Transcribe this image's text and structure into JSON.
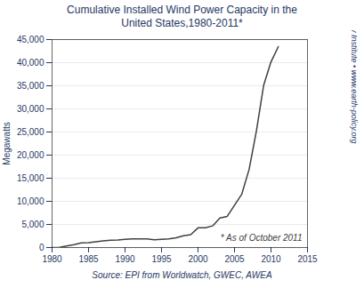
{
  "chart_data": {
    "type": "line",
    "title": "Cumulative Installed Wind Power Capacity in the\nUnited States,1980-2011*",
    "ylabel": "Megawatts",
    "annotation": "* As of October 2011",
    "credit": "Earth Policy Institute • www.earth-policy.org",
    "caption": "Source: EPI from Worldwatch, GWEC, AWEA",
    "x": [
      1980,
      1981,
      1982,
      1983,
      1984,
      1985,
      1986,
      1987,
      1988,
      1989,
      1990,
      1991,
      1992,
      1993,
      1994,
      1995,
      1996,
      1997,
      1998,
      1999,
      2000,
      2001,
      2002,
      2003,
      2004,
      2005,
      2006,
      2007,
      2008,
      2009,
      2010,
      2011
    ],
    "values": [
      10,
      50,
      340,
      625,
      1020,
      1039,
      1262,
      1423,
      1594,
      1655,
      1770,
      1854,
      1873,
      1875,
      1703,
      1770,
      1870,
      2108,
      2554,
      2796,
      4258,
      4275,
      4685,
      6374,
      6740,
      9149,
      11574,
      16896,
      25237,
      35159,
      40180,
      43461
    ],
    "color": "#404040",
    "xlim": [
      1980,
      2015
    ],
    "ylim": [
      0,
      45000
    ],
    "xticks": [
      1980,
      1985,
      1990,
      1995,
      2000,
      2005,
      2010,
      2015
    ],
    "yticks": [
      0,
      {
        "value": 5000,
        "label": "5,000"
      },
      {
        "value": 10000,
        "label": "10,000"
      },
      {
        "value": 15000,
        "label": "15,000"
      },
      {
        "value": 20000,
        "label": "20,000"
      },
      {
        "value": 25000,
        "label": "25,000"
      },
      {
        "value": 30000,
        "label": "30,000"
      },
      {
        "value": 35000,
        "label": "35,000"
      },
      {
        "value": 40000,
        "label": "40,000"
      },
      {
        "value": 45000,
        "label": "45,000"
      }
    ],
    "grid": "y"
  }
}
